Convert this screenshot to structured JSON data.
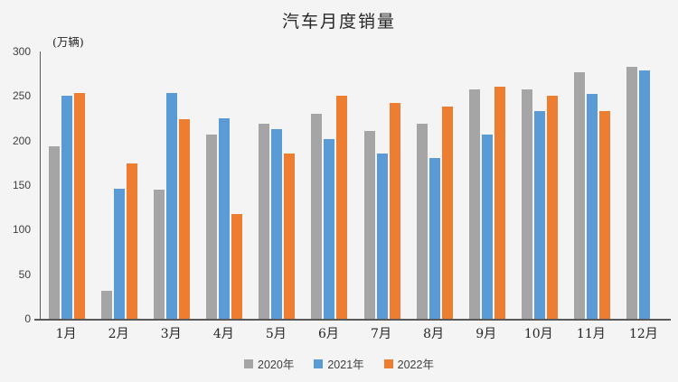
{
  "chart_data": {
    "type": "bar",
    "title": "汽车月度销量",
    "unit_label": "(万辆)",
    "categories": [
      "1月",
      "2月",
      "3月",
      "4月",
      "5月",
      "6月",
      "7月",
      "8月",
      "9月",
      "10月",
      "11月",
      "12月"
    ],
    "series": [
      {
        "name": "2020年",
        "color": "#a5a5a5",
        "values": [
          194,
          31,
          145,
          207,
          219,
          230,
          211,
          219,
          257,
          257,
          277,
          283
        ]
      },
      {
        "name": "2021年",
        "color": "#5b9bd5",
        "values": [
          250,
          146,
          253,
          225,
          213,
          202,
          186,
          180,
          207,
          233,
          252,
          279
        ]
      },
      {
        "name": "2022年",
        "color": "#ed7d31",
        "values": [
          253,
          174,
          224,
          118,
          186,
          250,
          242,
          238,
          261,
          250,
          233,
          null
        ]
      }
    ],
    "y_axis": {
      "min": 0,
      "max": 300,
      "step": 50,
      "tick_labels": [
        "0",
        "50",
        "100",
        "150",
        "200",
        "250",
        "300"
      ]
    },
    "grid": false,
    "legend_position": "bottom",
    "colors": {
      "background": "#f4f4f4",
      "axis_line": "#595959",
      "text": "#262626"
    }
  }
}
